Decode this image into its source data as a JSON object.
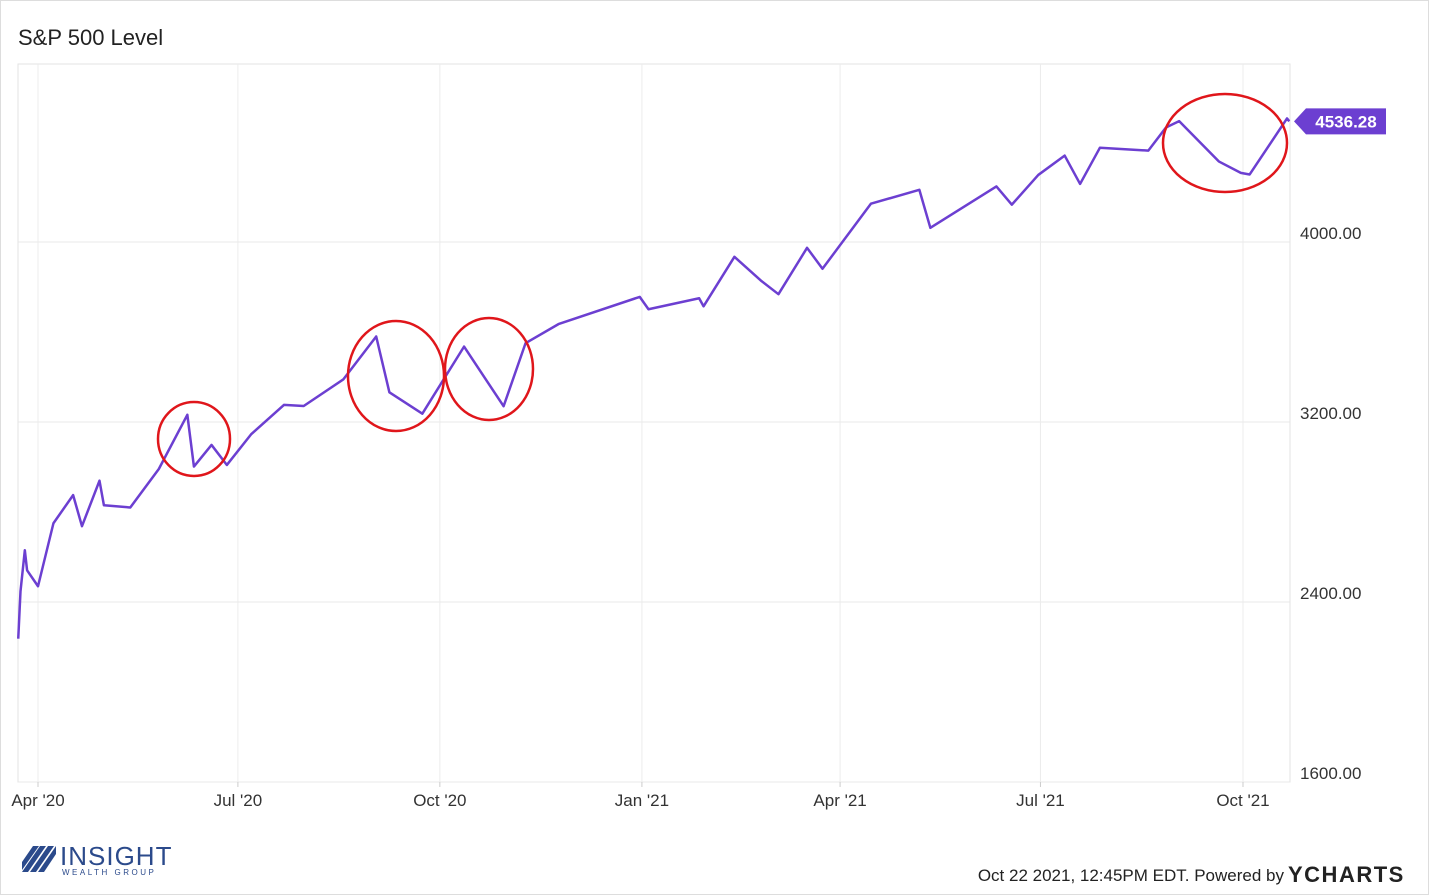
{
  "chart_data": {
    "type": "line",
    "title": "S&P 500 Level",
    "x": [
      2020.224,
      2020.2268,
      2020.2322,
      2020.235,
      2020.2486,
      2020.2678,
      2020.2923,
      2020.3033,
      2020.3251,
      2020.3306,
      2020.3634,
      2020.3989,
      2020.4344,
      2020.4426,
      2020.4645,
      2020.4836,
      2020.5137,
      2020.5546,
      2020.5792,
      2020.6284,
      2020.6694,
      2020.6858,
      2020.7268,
      2020.7787,
      2020.8279,
      2020.8552,
      2020.8962,
      2020.9973,
      2021.0082,
      2021.0712,
      2021.0767,
      2021.1151,
      2021.1479,
      2021.1699,
      2021.2055,
      2021.2247,
      2021.2849,
      2021.3452,
      2021.3589,
      2021.4411,
      2021.4603,
      2021.4932,
      2021.526,
      2021.5452,
      2021.5699,
      2021.6301,
      2021.6521,
      2021.6685,
      2021.7178,
      2021.7452,
      2021.7562,
      2021.8027,
      2021.8055
    ],
    "series": [
      {
        "name": "S&P 500 Level",
        "color": "#6c3fd1",
        "values": [
          2237,
          2447,
          2630,
          2541,
          2470,
          2750,
          2875,
          2737,
          2939,
          2830,
          2820,
          2991,
          3232,
          3002,
          3098,
          3009,
          3145,
          3276,
          3271,
          3389,
          3580,
          3332,
          3237,
          3535,
          3270,
          3550,
          3635,
          3756,
          3701,
          3750,
          3714,
          3934,
          3829,
          3768,
          3974,
          3881,
          4170,
          4232,
          4063,
          4247,
          4166,
          4298,
          4384,
          4258,
          4419,
          4406,
          4509,
          4537,
          4358,
          4307,
          4300,
          4549,
          4536.28
        ]
      }
    ],
    "xlim": [
      2020.2237,
      2021.8064
    ],
    "xticks": [
      {
        "value": 2020.2486,
        "label": "Apr '20"
      },
      {
        "value": 2020.4973,
        "label": "Jul '20"
      },
      {
        "value": 2020.7486,
        "label": "Oct '20"
      },
      {
        "value": 2021.0,
        "label": "Jan '21"
      },
      {
        "value": 2021.2466,
        "label": "Apr '21"
      },
      {
        "value": 2021.4959,
        "label": "Jul '21"
      },
      {
        "value": 2021.7479,
        "label": "Oct '21"
      }
    ],
    "ylim": [
      1600,
      4791
    ],
    "yticks": [
      {
        "value": 1600,
        "label": "1600.00"
      },
      {
        "value": 2400,
        "label": "2400.00"
      },
      {
        "value": 3200,
        "label": "3200.00"
      },
      {
        "value": 4000,
        "label": "4000.00"
      }
    ],
    "grid": true,
    "footer": "Oct 22 2021, 12:45PM EDT. Powered by",
    "brand": "YCHARTS",
    "logo_name": "INSIGHT",
    "logo_sub": "WEALTH GROUP"
  }
}
